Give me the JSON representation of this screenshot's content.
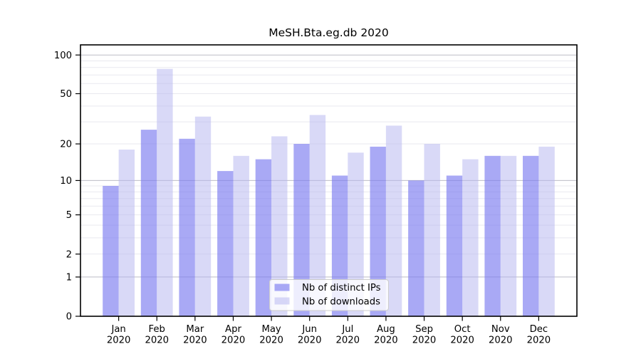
{
  "chart_data": {
    "type": "bar",
    "title": "MeSH.Bta.eg.db 2020",
    "categories": [
      "Jan 2020",
      "Feb 2020",
      "Mar 2020",
      "Apr 2020",
      "May 2020",
      "Jun 2020",
      "Jul 2020",
      "Aug 2020",
      "Sep 2020",
      "Oct 2020",
      "Nov 2020",
      "Dec 2020"
    ],
    "series": [
      {
        "name": "Nb of distinct IPs",
        "color": "#7b7bf0",
        "fill_opacity": 0.65,
        "values": [
          9,
          26,
          22,
          12,
          15,
          20,
          11,
          19,
          10,
          11,
          16,
          16
        ]
      },
      {
        "name": "Nb of downloads",
        "color": "#b3b3ef",
        "fill_opacity": 0.5,
        "values": [
          18,
          78,
          33,
          16,
          23,
          34,
          17,
          28,
          20,
          15,
          16,
          19
        ]
      }
    ],
    "xlabel": "",
    "ylabel": "",
    "yscale": "log10(1+y)",
    "yticks": [
      0,
      1,
      2,
      5,
      10,
      20,
      50,
      100
    ],
    "ylim": [
      0,
      120
    ],
    "gridlines": {
      "major": [
        1,
        10,
        100
      ],
      "minor": [
        2,
        3,
        4,
        5,
        6,
        7,
        8,
        9,
        20,
        30,
        40,
        50,
        60,
        70,
        80,
        90
      ]
    },
    "legend_position": "bottom-center",
    "grid": true
  }
}
